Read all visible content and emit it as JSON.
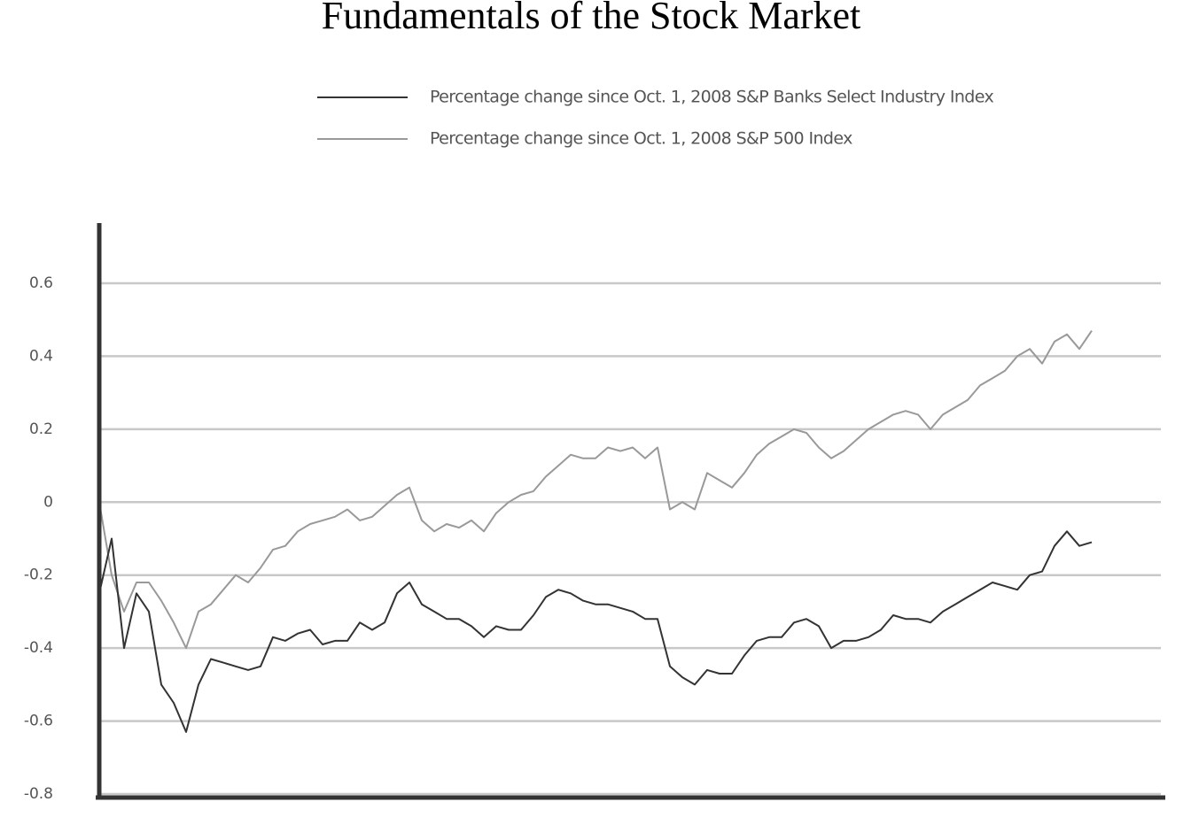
{
  "chart_data": {
    "type": "line",
    "title": "Fundamentals of the Stock Market",
    "categories": [
      null,
      null,
      null,
      null,
      null,
      null,
      null,
      null,
      null,
      null,
      null,
      null,
      null,
      null,
      null,
      null,
      null,
      null,
      null,
      null,
      null,
      null,
      null,
      null,
      null,
      null,
      null,
      null,
      null,
      null,
      null,
      null,
      null,
      null,
      null,
      null,
      null,
      null,
      null,
      null,
      null,
      null,
      null,
      null,
      null,
      null,
      null,
      null,
      null,
      null,
      null,
      null,
      null,
      null,
      null,
      null,
      null,
      null,
      null,
      null,
      null,
      null,
      null,
      null,
      null,
      null,
      null,
      null,
      null,
      null,
      null,
      null,
      null,
      null,
      null,
      null,
      null,
      null,
      null,
      null,
      null
    ],
    "series": [
      {
        "name": "Percentage change since Oct. 1, 2008 S&P Banks Select Industry Index",
        "color": "#333333",
        "values": [
          -0.25,
          -0.1,
          -0.4,
          -0.25,
          -0.3,
          -0.5,
          -0.55,
          -0.63,
          -0.5,
          -0.43,
          -0.44,
          -0.45,
          -0.46,
          -0.45,
          -0.37,
          -0.38,
          -0.36,
          -0.35,
          -0.39,
          -0.38,
          -0.38,
          -0.33,
          -0.35,
          -0.33,
          -0.25,
          -0.22,
          -0.28,
          -0.3,
          -0.32,
          -0.32,
          -0.34,
          -0.37,
          -0.34,
          -0.35,
          -0.35,
          -0.31,
          -0.26,
          -0.24,
          -0.25,
          -0.27,
          -0.28,
          -0.28,
          -0.29,
          -0.3,
          -0.32,
          -0.32,
          -0.45,
          -0.48,
          -0.5,
          -0.46,
          -0.47,
          -0.47,
          -0.42,
          -0.38,
          -0.37,
          -0.37,
          -0.33,
          -0.32,
          -0.34,
          -0.4,
          -0.38,
          -0.38,
          -0.37,
          -0.35,
          -0.31,
          -0.32,
          -0.32,
          -0.33,
          -0.3,
          -0.28,
          -0.26,
          -0.24,
          -0.22,
          -0.23,
          -0.24,
          -0.2,
          -0.19,
          -0.12,
          -0.08,
          -0.12,
          -0.11
        ]
      },
      {
        "name": "Percentage change since Oct. 1, 2008 S&P 500 Index",
        "color": "#999999",
        "values": [
          0.0,
          -0.2,
          -0.3,
          -0.22,
          -0.22,
          -0.27,
          -0.33,
          -0.4,
          -0.3,
          -0.28,
          -0.24,
          -0.2,
          -0.22,
          -0.18,
          -0.13,
          -0.12,
          -0.08,
          -0.06,
          -0.05,
          -0.04,
          -0.02,
          -0.05,
          -0.04,
          -0.01,
          0.02,
          0.04,
          -0.05,
          -0.08,
          -0.06,
          -0.07,
          -0.05,
          -0.08,
          -0.03,
          0.0,
          0.02,
          0.03,
          0.07,
          0.1,
          0.13,
          0.12,
          0.12,
          0.15,
          0.14,
          0.15,
          0.12,
          0.15,
          -0.02,
          0.0,
          -0.02,
          0.08,
          0.06,
          0.04,
          0.08,
          0.13,
          0.16,
          0.18,
          0.2,
          0.19,
          0.15,
          0.12,
          0.14,
          0.17,
          0.2,
          0.22,
          0.24,
          0.25,
          0.24,
          0.2,
          0.24,
          0.26,
          0.28,
          0.32,
          0.34,
          0.36,
          0.4,
          0.42,
          0.38,
          0.44,
          0.46,
          0.42,
          0.47
        ]
      }
    ],
    "ylim": [
      -0.8,
      0.6
    ],
    "yticks": [
      0.6,
      0.4,
      0.2,
      0,
      -0.2,
      -0.4,
      -0.6,
      -0.8
    ],
    "grid": true
  }
}
